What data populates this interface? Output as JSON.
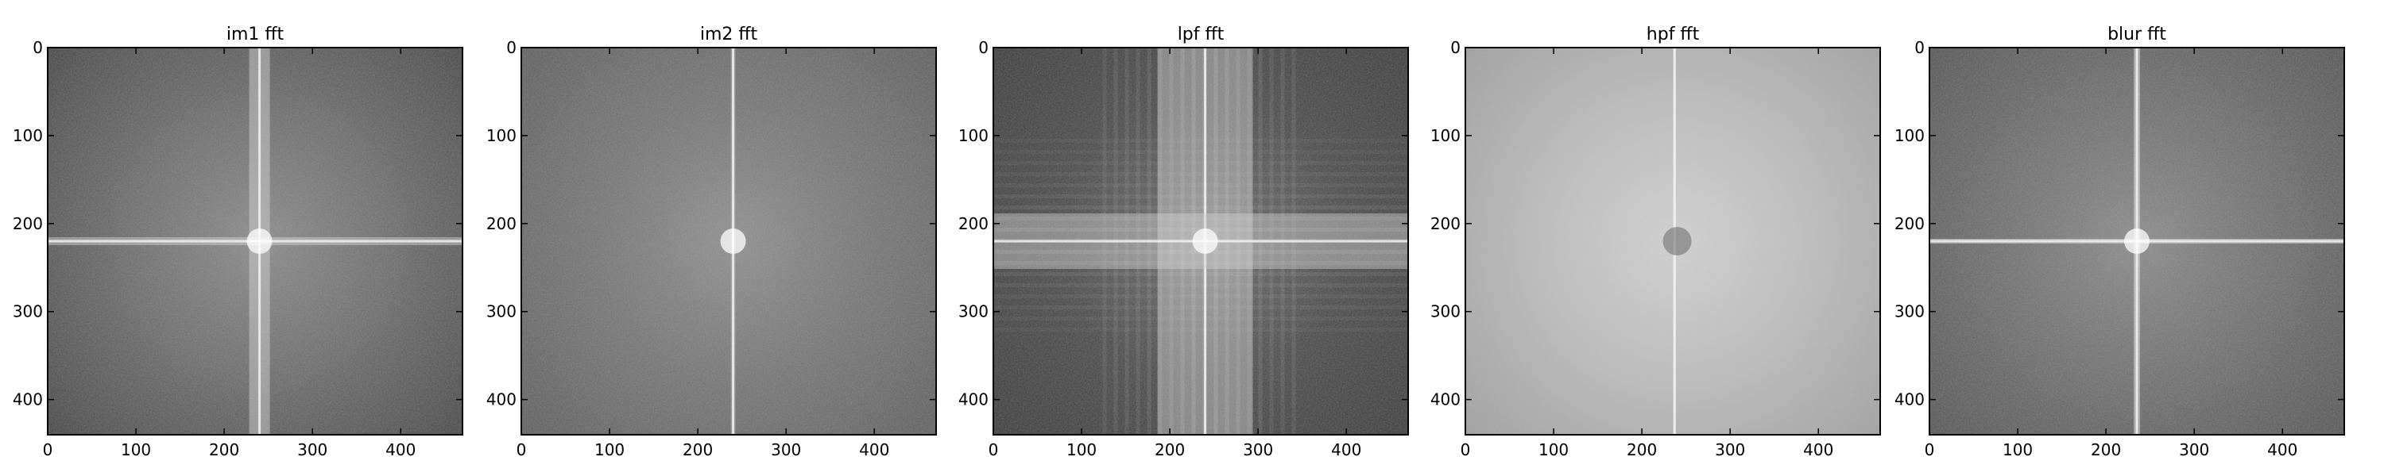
{
  "chart_data": [
    {
      "type": "heatmap",
      "title": "im1 fft",
      "xlim": [
        0,
        470
      ],
      "ylim": [
        0,
        440
      ],
      "xticks": [
        0,
        100,
        200,
        300,
        400
      ],
      "yticks": [
        0,
        100,
        200,
        300,
        400
      ],
      "center": [
        240,
        220
      ],
      "vertical_line_x": 240,
      "horizontal_line_y": 220,
      "brightness": "medium-dark, bright center cross",
      "colormap": "gray"
    },
    {
      "type": "heatmap",
      "title": "im2 fft",
      "xlim": [
        0,
        470
      ],
      "ylim": [
        0,
        440
      ],
      "xticks": [
        0,
        100,
        200,
        300,
        400
      ],
      "yticks": [
        0,
        100,
        200,
        300,
        400
      ],
      "center": [
        240,
        220
      ],
      "vertical_line_x": 240,
      "horizontal_line_y": null,
      "brightness": "medium gray, faint vertical line, bright center",
      "colormap": "gray"
    },
    {
      "type": "heatmap",
      "title": "lpf fft",
      "xlim": [
        0,
        470
      ],
      "ylim": [
        0,
        440
      ],
      "xticks": [
        0,
        100,
        200,
        300,
        400
      ],
      "yticks": [
        0,
        100,
        200,
        300,
        400
      ],
      "center": [
        240,
        220
      ],
      "vertical_line_x": 240,
      "horizontal_line_y": 220,
      "brightness": "dark with broad banded bright cross",
      "colormap": "gray"
    },
    {
      "type": "heatmap",
      "title": "hpf fft",
      "xlim": [
        0,
        470
      ],
      "ylim": [
        0,
        440
      ],
      "xticks": [
        0,
        100,
        200,
        300,
        400
      ],
      "yticks": [
        0,
        100,
        200,
        300,
        400
      ],
      "center": [
        240,
        220
      ],
      "vertical_line_x": 237,
      "horizontal_line_y": null,
      "brightness": "light gray, dark center",
      "colormap": "gray"
    },
    {
      "type": "heatmap",
      "title": "blur fft",
      "xlim": [
        0,
        470
      ],
      "ylim": [
        0,
        440
      ],
      "xticks": [
        0,
        100,
        200,
        300,
        400
      ],
      "yticks": [
        0,
        100,
        200,
        300,
        400
      ],
      "center": [
        235,
        220
      ],
      "vertical_line_x": 235,
      "horizontal_line_y": 220,
      "brightness": "medium gray, bright center cross",
      "colormap": "gray"
    }
  ]
}
